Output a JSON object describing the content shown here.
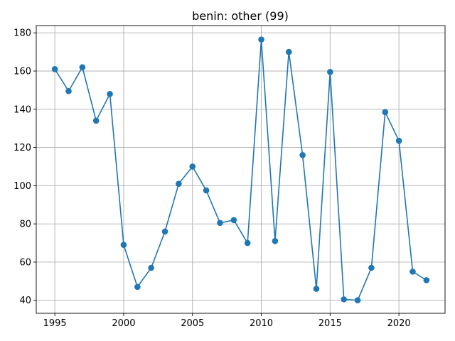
{
  "chart_data": {
    "type": "line",
    "title": "benin: other (99)",
    "xlabel": "",
    "ylabel": "",
    "xlim": [
      1993.65,
      2023.35
    ],
    "ylim": [
      33.2,
      183.8
    ],
    "x_ticks": [
      1995,
      2000,
      2005,
      2010,
      2015,
      2020
    ],
    "y_ticks": [
      40,
      60,
      80,
      100,
      120,
      140,
      160,
      180
    ],
    "grid": true,
    "marker": "circle",
    "color": "#1f77b4",
    "series": [
      {
        "x": [
          1995,
          1996,
          1997,
          1998,
          1999,
          2000,
          2001,
          2002,
          2003,
          2004,
          2005,
          2006,
          2007,
          2008,
          2009,
          2010,
          2011,
          2012,
          2013,
          2014,
          2015,
          2016,
          2017,
          2018,
          2019,
          2020,
          2021,
          2022
        ],
        "values": [
          161,
          149.5,
          162,
          134,
          148,
          69,
          47,
          57,
          76,
          101,
          110,
          97.5,
          80.5,
          82,
          70,
          176.5,
          71,
          170,
          116,
          46,
          159.5,
          40.5,
          40,
          57,
          138.5,
          123.5,
          55,
          50.5
        ]
      }
    ]
  }
}
